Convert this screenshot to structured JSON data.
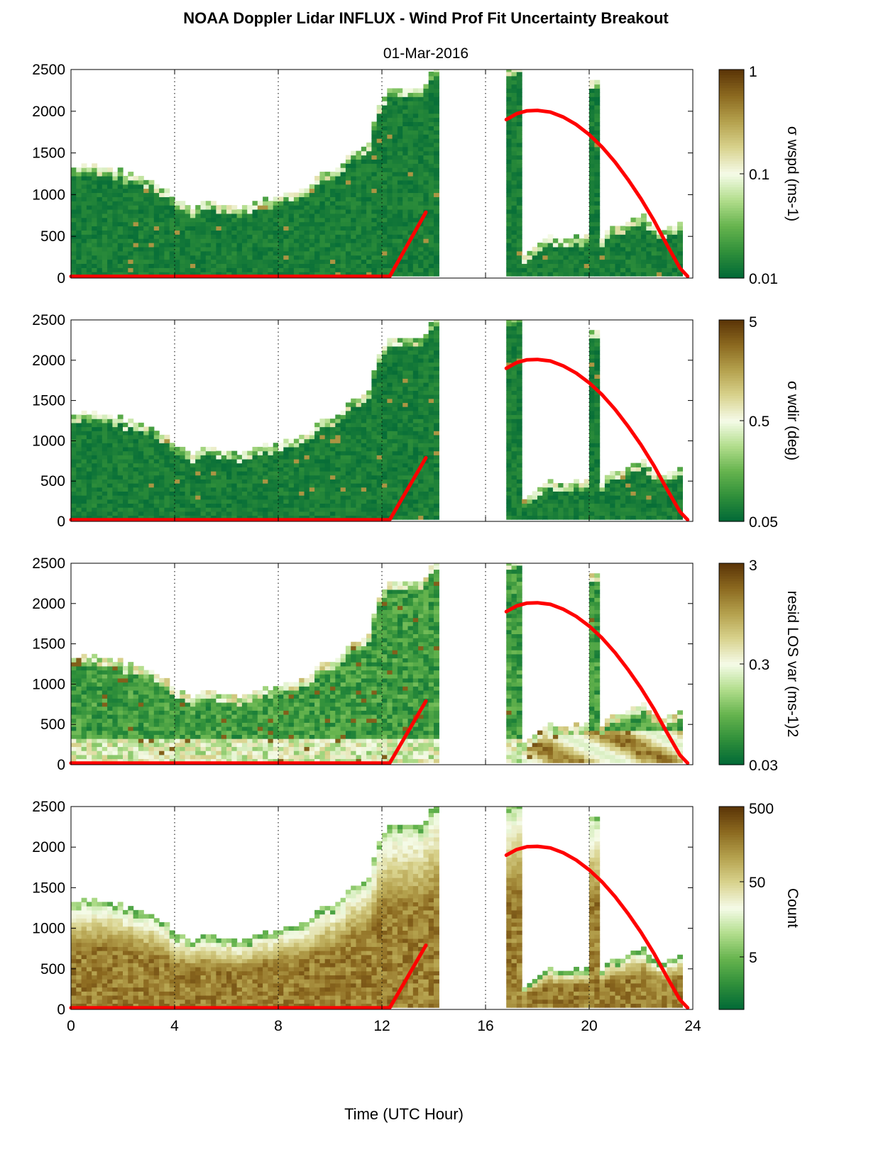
{
  "title": "NOAA Doppler Lidar INFLUX - Wind Prof Fit Uncertainty Breakout",
  "subtitle": "01-Mar-2016",
  "xlabel": "Time (UTC Hour)",
  "colors": {
    "colormap": [
      "#006837",
      "#2f8f3a",
      "#66b44e",
      "#b2dd8c",
      "#f5fbe8",
      "#d9d38e",
      "#b5a24e",
      "#8c6a20",
      "#5b3407"
    ],
    "red_line": "#ff0000"
  },
  "chart_data": [
    {
      "type": "heatmap",
      "panel": "sigma-wspd",
      "xlim": [
        0,
        24
      ],
      "ylim": [
        0,
        2500
      ],
      "xticks": [
        0,
        4,
        8,
        12,
        16,
        20,
        24
      ],
      "yticks": [
        0,
        500,
        1000,
        1500,
        2000,
        2500
      ],
      "x_grid": "dotted vertical lines",
      "colorbar": {
        "label": "σ wspd (ms-1)",
        "scale": "log",
        "range": [
          0.01,
          1
        ],
        "ticks": [
          "0.01",
          "0.1",
          "1"
        ]
      }
    },
    {
      "type": "heatmap",
      "panel": "sigma-wdir",
      "xlim": [
        0,
        24
      ],
      "ylim": [
        0,
        2500
      ],
      "xticks": [
        0,
        4,
        8,
        12,
        16,
        20,
        24
      ],
      "yticks": [
        0,
        500,
        1000,
        1500,
        2000,
        2500
      ],
      "x_grid": "dotted vertical lines",
      "colorbar": {
        "label": "σ wdir (deg)",
        "scale": "log",
        "range": [
          0.05,
          5
        ],
        "ticks": [
          "0.05",
          "0.5",
          "5"
        ]
      }
    },
    {
      "type": "heatmap",
      "panel": "resid-los-var",
      "xlim": [
        0,
        24
      ],
      "ylim": [
        0,
        2500
      ],
      "xticks": [
        0,
        4,
        8,
        12,
        16,
        20,
        24
      ],
      "yticks": [
        0,
        500,
        1000,
        1500,
        2000,
        2500
      ],
      "x_grid": "dotted vertical lines",
      "colorbar": {
        "label": "resid LOS var (ms-1)2",
        "scale": "log",
        "range": [
          0.03,
          3
        ],
        "ticks": [
          "0.03",
          "0.3",
          "3"
        ]
      }
    },
    {
      "type": "heatmap",
      "panel": "count",
      "xlim": [
        0,
        24
      ],
      "ylim": [
        0,
        2500
      ],
      "xticks": [
        0,
        4,
        8,
        12,
        16,
        20,
        24
      ],
      "yticks": [
        0,
        500,
        1000,
        1500,
        2000,
        2500
      ],
      "x_grid": "dotted vertical lines",
      "colorbar": {
        "label": "Count",
        "scale": "log",
        "range": [
          1,
          500
        ],
        "ticks": [
          "5",
          "50",
          "500"
        ]
      }
    }
  ],
  "data_gap": {
    "from": 14.1,
    "to": 16.8
  },
  "mixing_height_line": {
    "segments": [
      {
        "x": [
          0,
          12.3,
          13.7
        ],
        "y": [
          20,
          20,
          790
        ]
      },
      {
        "x": [
          16.8,
          17.2,
          17.6,
          18.0,
          18.5,
          19.0,
          19.5,
          20.0,
          20.5,
          21.0,
          21.5,
          22.0,
          22.5,
          23.0,
          23.5,
          23.8
        ],
        "y": [
          1900,
          1970,
          2005,
          2010,
          1990,
          1930,
          1840,
          1720,
          1570,
          1390,
          1180,
          950,
          690,
          400,
          120,
          20
        ]
      }
    ]
  },
  "top_profile": {
    "x": [
      0,
      0.5,
      1,
      1.5,
      2,
      2.5,
      3,
      3.5,
      4,
      4.5,
      5,
      5.5,
      6,
      6.5,
      7,
      7.5,
      8,
      8.5,
      9,
      9.5,
      10,
      10.5,
      11,
      11.5,
      12,
      12.5,
      13,
      13.5,
      14.0
    ],
    "y": [
      1280,
      1340,
      1300,
      1320,
      1260,
      1220,
      1150,
      1100,
      900,
      840,
      880,
      880,
      860,
      850,
      880,
      910,
      940,
      980,
      1060,
      1160,
      1250,
      1360,
      1520,
      1640,
      2180,
      2220,
      2240,
      2200,
      2500
    ]
  },
  "afternoon_profile": {
    "x": [
      17.4,
      18.0,
      18.5,
      19.0,
      19.5,
      20.0,
      20.5,
      21.0,
      21.5,
      22.0,
      22.5,
      23.0,
      23.5
    ],
    "y": [
      270,
      380,
      460,
      420,
      460,
      500,
      480,
      600,
      660,
      720,
      620,
      560,
      640
    ]
  },
  "spike_2015": {
    "x": [
      20.05,
      20.35
    ],
    "top": 2380
  }
}
